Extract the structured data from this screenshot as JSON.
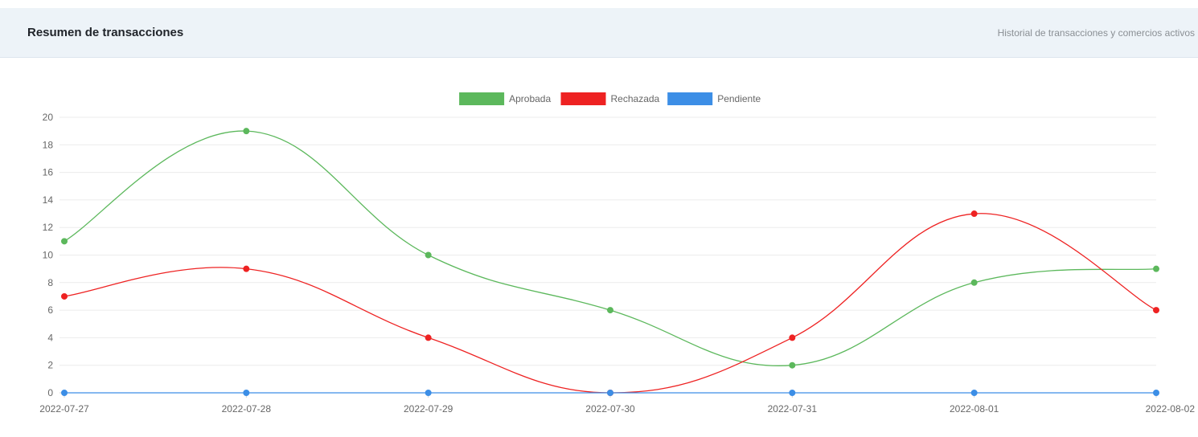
{
  "header": {
    "title": "Resumen de transacciones",
    "subtitle": "Historial de transacciones y comercios activos"
  },
  "chart_data": {
    "type": "line",
    "x": [
      "2022-07-27",
      "2022-07-28",
      "2022-07-29",
      "2022-07-30",
      "2022-07-31",
      "2022-08-01",
      "2022-08-02"
    ],
    "ylim": [
      0,
      20
    ],
    "yticks": [
      "0",
      "2",
      "4",
      "6",
      "8",
      "10",
      "12",
      "14",
      "16",
      "18",
      "20"
    ],
    "grid": true,
    "legend_position": "top",
    "series": [
      {
        "name": "Aprobada",
        "color": "#5cb85c",
        "values": [
          11,
          19,
          10,
          6,
          2,
          8,
          9
        ]
      },
      {
        "name": "Rechazada",
        "color": "#ee2222",
        "values": [
          7,
          9,
          4,
          0,
          4,
          13,
          6
        ]
      },
      {
        "name": "Pendiente",
        "color": "#3c8ee6",
        "values": [
          0,
          0,
          0,
          0,
          0,
          0,
          0
        ]
      }
    ]
  }
}
